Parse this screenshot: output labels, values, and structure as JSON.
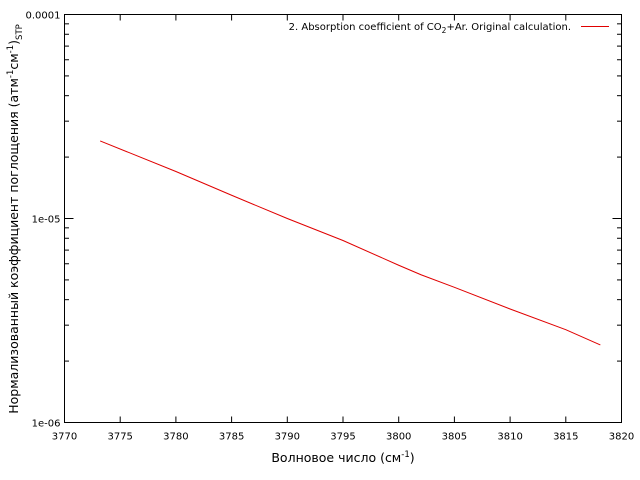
{
  "chart_data": {
    "type": "line",
    "xlabel": {
      "main": "Волновое число (см",
      "sup": "-1",
      "end": ")"
    },
    "ylabel": {
      "p1": "Нормализованный коэффициент поглощения (атм",
      "s1": "-1",
      "p2": "см",
      "s2": "-1",
      "p3": ")",
      "sub": "STP"
    },
    "xlim": [
      3770,
      3820
    ],
    "ylim": [
      1e-06,
      0.0001
    ],
    "yscale": "log",
    "x_ticks": [
      "3770",
      "3775",
      "3780",
      "3785",
      "3790",
      "3795",
      "3800",
      "3805",
      "3810",
      "3815",
      "3820"
    ],
    "y_ticks": [
      "1e-06",
      "1e-05",
      "0.0001"
    ],
    "grid": false,
    "legend_position": "top-right",
    "series": [
      {
        "name": {
          "pre": "2. Absorption coefficient of CO",
          "sub": "2",
          "post": "+Ar. Original calculation."
        },
        "color": "#e00000",
        "x": [
          3773.2,
          3780,
          3785,
          3790,
          3795,
          3800,
          3802,
          3805,
          3810,
          3815,
          3818.1
        ],
        "y": [
          2.4e-05,
          1.7e-05,
          1.3e-05,
          1e-05,
          7.8e-06,
          5.9e-06,
          5.3e-06,
          4.6e-06,
          3.6e-06,
          2.85e-06,
          2.4e-06
        ]
      }
    ]
  }
}
